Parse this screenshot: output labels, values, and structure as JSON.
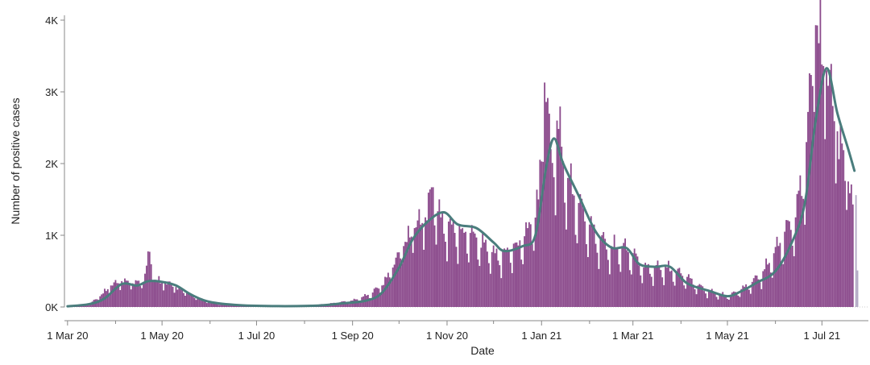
{
  "chart_data": {
    "type": "bar",
    "xlabel": "Date",
    "ylabel": "Number of positive cases",
    "ylim": [
      0,
      4000
    ],
    "y_ticks": [
      {
        "value": 0,
        "label": "0K"
      },
      {
        "value": 1000,
        "label": "1K"
      },
      {
        "value": 2000,
        "label": "2K"
      },
      {
        "value": 3000,
        "label": "3K"
      },
      {
        "value": 4000,
        "label": "4K"
      }
    ],
    "x_range": [
      "2020-02-28",
      "2021-07-31"
    ],
    "x_ticks": [
      {
        "date": "2020-03-01",
        "label": "1 Mar 20"
      },
      {
        "date": "2020-05-01",
        "label": "1 May 20"
      },
      {
        "date": "2020-07-01",
        "label": "1 Jul 20"
      },
      {
        "date": "2020-09-01",
        "label": "1 Sep 20"
      },
      {
        "date": "2020-11-01",
        "label": "1 Nov 20"
      },
      {
        "date": "2021-01-01",
        "label": "1 Jan 21"
      },
      {
        "date": "2021-03-01",
        "label": "1 Mar 21"
      },
      {
        "date": "2021-05-01",
        "label": "1 May 21"
      },
      {
        "date": "2021-07-01",
        "label": "1 Jul 21"
      }
    ],
    "x_minor_ticks": [
      "2020-04-01",
      "2020-06-01",
      "2020-08-01",
      "2020-10-01",
      "2020-12-01",
      "2021-02-01",
      "2021-04-01",
      "2021-06-01"
    ],
    "grid": false,
    "colors": {
      "bars": "#8b4a8c",
      "incomplete_bars": "#b3a9c4",
      "line": "#4a7d7d",
      "axis": "#888888"
    },
    "series": [
      {
        "kind": "bars",
        "points": [
          {
            "x": "2020-03-01",
            "y": 5
          },
          {
            "x": "2020-03-08",
            "y": 15
          },
          {
            "x": "2020-03-15",
            "y": 40
          },
          {
            "x": "2020-03-22",
            "y": 150
          },
          {
            "x": "2020-03-29",
            "y": 300
          },
          {
            "x": "2020-04-05",
            "y": 360
          },
          {
            "x": "2020-04-12",
            "y": 330
          },
          {
            "x": "2020-04-19",
            "y": 350
          },
          {
            "x": "2020-04-23",
            "y": 770
          },
          {
            "x": "2020-04-26",
            "y": 380
          },
          {
            "x": "2020-05-03",
            "y": 340
          },
          {
            "x": "2020-05-10",
            "y": 280
          },
          {
            "x": "2020-05-17",
            "y": 200
          },
          {
            "x": "2020-05-24",
            "y": 120
          },
          {
            "x": "2020-05-31",
            "y": 70
          },
          {
            "x": "2020-06-15",
            "y": 30
          },
          {
            "x": "2020-07-01",
            "y": 18
          },
          {
            "x": "2020-07-15",
            "y": 15
          },
          {
            "x": "2020-08-01",
            "y": 20
          },
          {
            "x": "2020-08-15",
            "y": 40
          },
          {
            "x": "2020-09-01",
            "y": 90
          },
          {
            "x": "2020-09-10",
            "y": 160
          },
          {
            "x": "2020-09-20",
            "y": 300
          },
          {
            "x": "2020-09-27",
            "y": 550
          },
          {
            "x": "2020-10-04",
            "y": 850
          },
          {
            "x": "2020-10-11",
            "y": 1100
          },
          {
            "x": "2020-10-18",
            "y": 1250
          },
          {
            "x": "2020-10-23",
            "y": 1670
          },
          {
            "x": "2020-10-28",
            "y": 1250
          },
          {
            "x": "2020-11-04",
            "y": 1150
          },
          {
            "x": "2020-11-11",
            "y": 1100
          },
          {
            "x": "2020-11-18",
            "y": 1050
          },
          {
            "x": "2020-11-25",
            "y": 900
          },
          {
            "x": "2020-12-02",
            "y": 750
          },
          {
            "x": "2020-12-09",
            "y": 800
          },
          {
            "x": "2020-12-16",
            "y": 900
          },
          {
            "x": "2020-12-23",
            "y": 1100
          },
          {
            "x": "2020-12-30",
            "y": 1500
          },
          {
            "x": "2021-01-03",
            "y": 3130
          },
          {
            "x": "2021-01-07",
            "y": 2200
          },
          {
            "x": "2021-01-11",
            "y": 2600
          },
          {
            "x": "2021-01-18",
            "y": 1800
          },
          {
            "x": "2021-01-25",
            "y": 1450
          },
          {
            "x": "2021-02-01",
            "y": 1150
          },
          {
            "x": "2021-02-08",
            "y": 950
          },
          {
            "x": "2021-02-15",
            "y": 850
          },
          {
            "x": "2021-02-22",
            "y": 850
          },
          {
            "x": "2021-03-01",
            "y": 750
          },
          {
            "x": "2021-03-08",
            "y": 550
          },
          {
            "x": "2021-03-15",
            "y": 560
          },
          {
            "x": "2021-03-22",
            "y": 560
          },
          {
            "x": "2021-03-29",
            "y": 500
          },
          {
            "x": "2021-04-05",
            "y": 420
          },
          {
            "x": "2021-04-12",
            "y": 300
          },
          {
            "x": "2021-04-19",
            "y": 230
          },
          {
            "x": "2021-04-26",
            "y": 180
          },
          {
            "x": "2021-05-03",
            "y": 170
          },
          {
            "x": "2021-05-10",
            "y": 250
          },
          {
            "x": "2021-05-17",
            "y": 350
          },
          {
            "x": "2021-05-24",
            "y": 500
          },
          {
            "x": "2021-05-31",
            "y": 750
          },
          {
            "x": "2021-06-07",
            "y": 1050
          },
          {
            "x": "2021-06-14",
            "y": 1250
          },
          {
            "x": "2021-06-21",
            "y": 2300
          },
          {
            "x": "2021-06-27",
            "y": 3930
          },
          {
            "x": "2021-07-04",
            "y": 3300
          },
          {
            "x": "2021-07-11",
            "y": 2450
          },
          {
            "x": "2021-07-18",
            "y": 1750
          },
          {
            "x": "2021-07-21",
            "y": 1430
          }
        ]
      },
      {
        "kind": "incomplete-bars",
        "points": [
          {
            "x": "2021-07-23",
            "y": 1560
          },
          {
            "x": "2021-07-24",
            "y": 510
          }
        ]
      },
      {
        "kind": "line",
        "points": [
          {
            "x": "2020-03-01",
            "y": 10
          },
          {
            "x": "2020-03-15",
            "y": 40
          },
          {
            "x": "2020-03-25",
            "y": 120
          },
          {
            "x": "2020-04-05",
            "y": 320
          },
          {
            "x": "2020-04-15",
            "y": 300
          },
          {
            "x": "2020-04-22",
            "y": 360
          },
          {
            "x": "2020-05-01",
            "y": 350
          },
          {
            "x": "2020-05-10",
            "y": 300
          },
          {
            "x": "2020-05-20",
            "y": 170
          },
          {
            "x": "2020-06-01",
            "y": 70
          },
          {
            "x": "2020-06-20",
            "y": 25
          },
          {
            "x": "2020-07-15",
            "y": 12
          },
          {
            "x": "2020-08-10",
            "y": 20
          },
          {
            "x": "2020-08-25",
            "y": 50
          },
          {
            "x": "2020-09-10",
            "y": 90
          },
          {
            "x": "2020-09-20",
            "y": 200
          },
          {
            "x": "2020-10-01",
            "y": 550
          },
          {
            "x": "2020-10-10",
            "y": 950
          },
          {
            "x": "2020-10-20",
            "y": 1200
          },
          {
            "x": "2020-10-30",
            "y": 1320
          },
          {
            "x": "2020-11-08",
            "y": 1150
          },
          {
            "x": "2020-11-20",
            "y": 1100
          },
          {
            "x": "2020-12-01",
            "y": 900
          },
          {
            "x": "2020-12-08",
            "y": 780
          },
          {
            "x": "2020-12-20",
            "y": 850
          },
          {
            "x": "2020-12-28",
            "y": 1000
          },
          {
            "x": "2021-01-04",
            "y": 1950
          },
          {
            "x": "2021-01-09",
            "y": 2350
          },
          {
            "x": "2021-01-15",
            "y": 2000
          },
          {
            "x": "2021-01-25",
            "y": 1550
          },
          {
            "x": "2021-02-05",
            "y": 1050
          },
          {
            "x": "2021-02-15",
            "y": 830
          },
          {
            "x": "2021-02-25",
            "y": 820
          },
          {
            "x": "2021-03-05",
            "y": 600
          },
          {
            "x": "2021-03-15",
            "y": 560
          },
          {
            "x": "2021-03-25",
            "y": 560
          },
          {
            "x": "2021-04-05",
            "y": 330
          },
          {
            "x": "2021-04-20",
            "y": 220
          },
          {
            "x": "2021-05-01",
            "y": 150
          },
          {
            "x": "2021-05-10",
            "y": 220
          },
          {
            "x": "2021-05-20",
            "y": 340
          },
          {
            "x": "2021-06-01",
            "y": 500
          },
          {
            "x": "2021-06-12",
            "y": 920
          },
          {
            "x": "2021-06-20",
            "y": 1450
          },
          {
            "x": "2021-06-27",
            "y": 2600
          },
          {
            "x": "2021-07-04",
            "y": 3330
          },
          {
            "x": "2021-07-11",
            "y": 2700
          },
          {
            "x": "2021-07-18",
            "y": 2200
          },
          {
            "x": "2021-07-22",
            "y": 1900
          }
        ]
      }
    ]
  }
}
